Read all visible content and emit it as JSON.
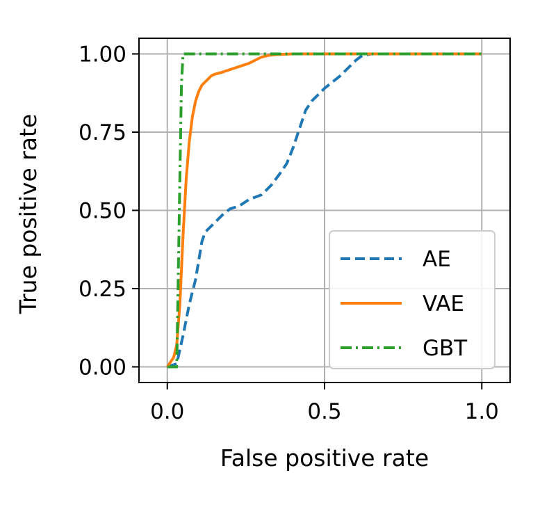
{
  "chart_data": {
    "type": "line",
    "title": "",
    "xlabel": "False positive rate",
    "ylabel": "True positive rate",
    "xlim": [
      -0.09,
      1.09
    ],
    "ylim": [
      -0.05,
      1.05
    ],
    "grid": true,
    "legend_position": "lower-right",
    "x_ticks": [
      0.0,
      0.5,
      1.0
    ],
    "x_tick_labels": [
      "0.0",
      "0.5",
      "1.0"
    ],
    "y_ticks": [
      0.0,
      0.25,
      0.5,
      0.75,
      1.0
    ],
    "y_tick_labels": [
      "0.00",
      "0.25",
      "0.50",
      "0.75",
      "1.00"
    ],
    "series": [
      {
        "name": "AE",
        "color": "#1f77b4",
        "style": "dashed",
        "x": [
          0.0,
          0.03,
          0.05,
          0.07,
          0.09,
          0.1,
          0.11,
          0.12,
          0.14,
          0.16,
          0.18,
          0.2,
          0.23,
          0.26,
          0.3,
          0.33,
          0.36,
          0.38,
          0.4,
          0.42,
          0.44,
          0.46,
          0.5,
          0.55,
          0.58,
          0.6,
          0.62,
          0.65,
          0.7,
          1.0
        ],
        "y": [
          0.0,
          0.01,
          0.1,
          0.2,
          0.28,
          0.34,
          0.4,
          0.43,
          0.45,
          0.47,
          0.49,
          0.505,
          0.515,
          0.535,
          0.55,
          0.58,
          0.62,
          0.65,
          0.7,
          0.76,
          0.82,
          0.85,
          0.89,
          0.93,
          0.96,
          0.98,
          0.995,
          1.0,
          1.0,
          1.0
        ]
      },
      {
        "name": "VAE",
        "color": "#ff7f0e",
        "style": "solid",
        "x": [
          0.0,
          0.02,
          0.03,
          0.04,
          0.05,
          0.06,
          0.07,
          0.08,
          0.09,
          0.1,
          0.11,
          0.12,
          0.13,
          0.14,
          0.15,
          0.17,
          0.2,
          0.23,
          0.26,
          0.28,
          0.3,
          0.32,
          0.35,
          0.4,
          0.45,
          0.5,
          1.0
        ],
        "y": [
          0.0,
          0.03,
          0.07,
          0.2,
          0.42,
          0.6,
          0.72,
          0.8,
          0.85,
          0.88,
          0.9,
          0.91,
          0.92,
          0.93,
          0.935,
          0.94,
          0.95,
          0.96,
          0.97,
          0.98,
          0.99,
          0.995,
          0.998,
          1.0,
          1.0,
          1.0,
          1.0
        ]
      },
      {
        "name": "GBT",
        "color": "#2ca02c",
        "style": "dashdot",
        "x": [
          0.0,
          0.03,
          0.035,
          0.04,
          0.045,
          0.05,
          0.06,
          0.1,
          0.5,
          1.0
        ],
        "y": [
          0.0,
          0.0,
          0.3,
          0.6,
          0.9,
          1.0,
          1.0,
          1.0,
          1.0,
          1.0
        ]
      }
    ]
  }
}
